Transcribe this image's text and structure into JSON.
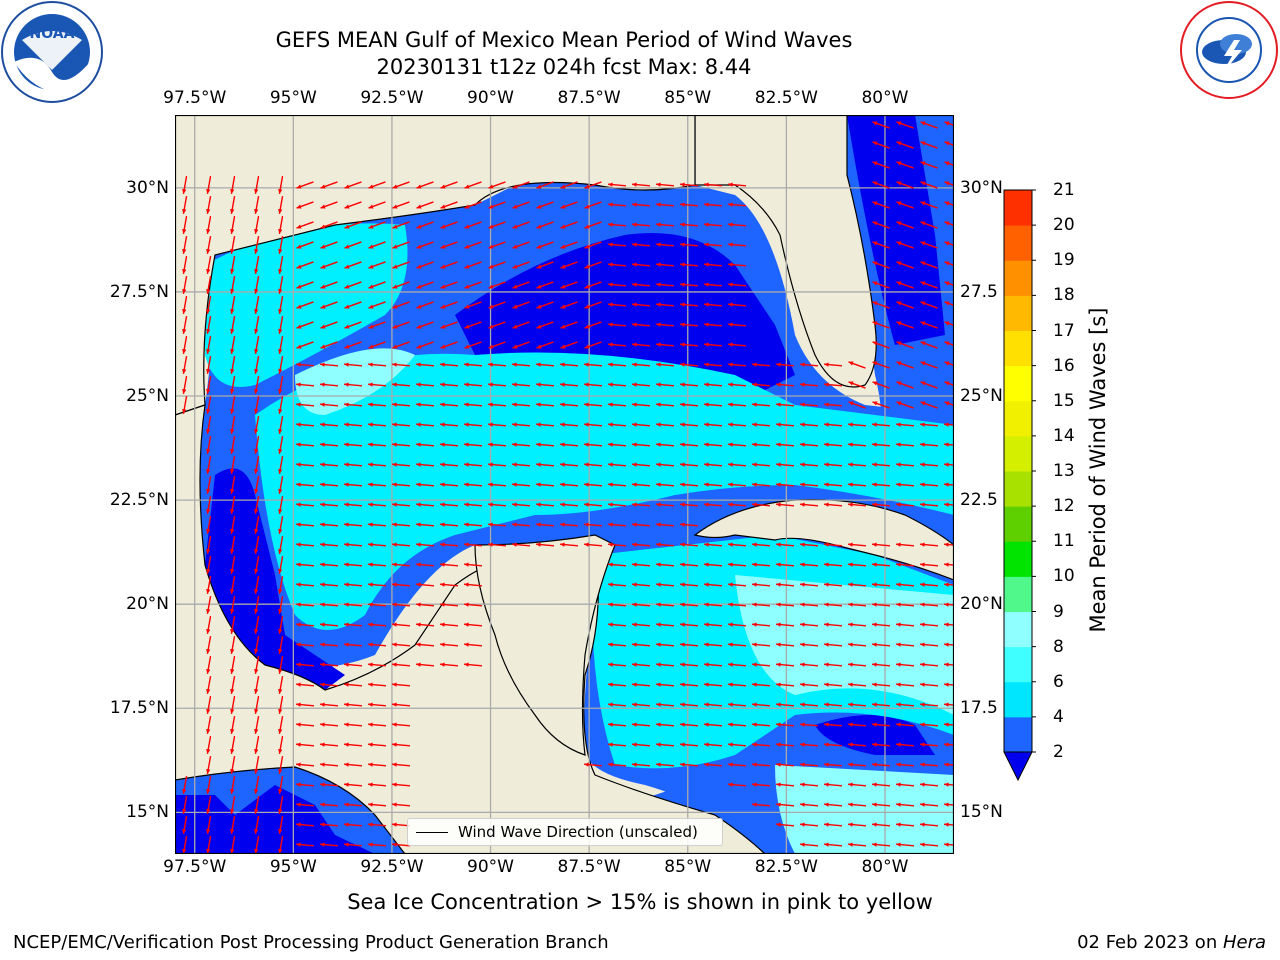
{
  "title": {
    "line1": "GEFS MEAN Gulf of Mexico Mean Period of Wind Waves",
    "line2": "20230131 t12z 024h fcst   Max: 8.44"
  },
  "logos": {
    "left": "NOAA",
    "right": "NATIONAL WEATHER SERVICE"
  },
  "map": {
    "lon_ticks": [
      "97.5°W",
      "95°W",
      "92.5°W",
      "90°W",
      "87.5°W",
      "85°W",
      "82.5°W",
      "80°W"
    ],
    "lon_values": [
      -97.5,
      -95,
      -92.5,
      -90,
      -87.5,
      -85,
      -82.5,
      -80
    ],
    "lat_ticks_left": [
      "30°N",
      "27.5°N",
      "25°N",
      "22.5°N",
      "20°N",
      "17.5°N",
      "15°N"
    ],
    "lat_ticks_right": [
      "30°N",
      "27.5",
      "25°N",
      "22.5",
      "20°N",
      "17.5",
      "15°N"
    ],
    "lat_values": [
      30,
      27.5,
      25,
      22.5,
      20,
      17.5,
      15
    ],
    "extent": {
      "lon_min": -98,
      "lon_max": -78.25,
      "lat_min": 14,
      "lat_max": 31.75
    },
    "colors": {
      "land": "#efedda",
      "ocean_low": "#0000ee",
      "ocean_mid": "#1e64ff",
      "ocean_cyan": "#00f0ff",
      "ocean_light": "#90ffff",
      "arrow": "#ff0000",
      "grid": "#aaaaaa"
    }
  },
  "colorbar": {
    "label": "Mean Period of Wind Waves [s]",
    "ticks": [
      "2",
      "4",
      "6",
      "8",
      "9",
      "10",
      "11",
      "12",
      "13",
      "14",
      "15",
      "16",
      "17",
      "18",
      "19",
      "20",
      "21"
    ],
    "colors": [
      "#1e64ff",
      "#00e6ff",
      "#40ffff",
      "#90ffff",
      "#50f78a",
      "#00e400",
      "#5ed000",
      "#a8e000",
      "#d4f000",
      "#f0f000",
      "#ffff00",
      "#ffe000",
      "#ffba00",
      "#ff9000",
      "#ff6000",
      "#ff3000",
      "#ff0000"
    ],
    "extend_color": "#0000ee"
  },
  "legend": {
    "label": "Wind Wave Direction (unscaled)"
  },
  "footnote": "Sea Ice Concentration > 15% is shown in pink to yellow",
  "credit_left": "NCEP/EMC/Verification Post Processing Product Generation Branch",
  "credit_right_date": "02 Feb 2023 on ",
  "credit_right_host": "Hera"
}
